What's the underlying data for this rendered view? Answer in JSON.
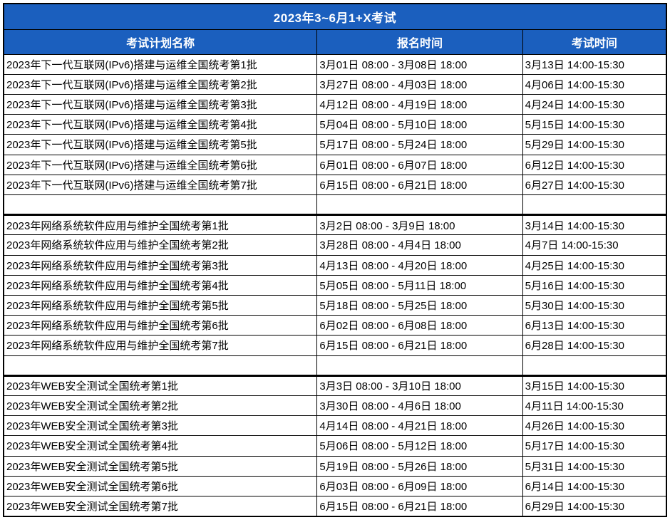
{
  "title": "2023年3~6月1+X考试",
  "columns": [
    "考试计划名称",
    "报名时间",
    "考试时间"
  ],
  "colors": {
    "header_bg": "#1b5fbe",
    "header_text": "#ffffff",
    "border": "#000000",
    "body_bg": "#ffffff",
    "body_text": "#000000"
  },
  "sections": [
    {
      "rows": [
        [
          "2023年下一代互联网(IPv6)搭建与运维全国统考第1批",
          "3月01日 08:00 - 3月08日 18:00",
          "3月13日 14:00-15:30"
        ],
        [
          "2023年下一代互联网(IPv6)搭建与运维全国统考第2批",
          "3月27日 08:00 - 4月03日 18:00",
          "4月06日 14:00-15:30"
        ],
        [
          "2023年下一代互联网(IPv6)搭建与运维全国统考第3批",
          "4月12日 08:00 - 4月19日 18:00",
          "4月24日 14:00-15:30"
        ],
        [
          "2023年下一代互联网(IPv6)搭建与运维全国统考第4批",
          "5月04日 08:00 - 5月10日 18:00",
          "5月15日 14:00-15:30"
        ],
        [
          "2023年下一代互联网(IPv6)搭建与运维全国统考第5批",
          "5月17日 08:00 - 5月24日 18:00",
          "5月29日 14:00-15:30"
        ],
        [
          "2023年下一代互联网(IPv6)搭建与运维全国统考第6批",
          "6月01日 08:00 - 6月07日 18:00",
          "6月12日 14:00-15:30"
        ],
        [
          "2023年下一代互联网(IPv6)搭建与运维全国统考第7批",
          "6月15日 08:00 - 6月21日 18:00",
          "6月27日 14:00-15:30"
        ]
      ]
    },
    {
      "rows": [
        [
          "2023年网络系统软件应用与维护全国统考第1批",
          "3月2日 08:00 - 3月9日 18:00",
          "3月14日 14:00-15:30"
        ],
        [
          "2023年网络系统软件应用与维护全国统考第2批",
          "3月28日 08:00 - 4月4日 18:00",
          "4月7日 14:00-15:30"
        ],
        [
          "2023年网络系统软件应用与维护全国统考第3批",
          "4月13日 08:00 - 4月20日 18:00",
          "4月25日 14:00-15:30"
        ],
        [
          "2023年网络系统软件应用与维护全国统考第4批",
          "5月05日 08:00 - 5月11日 18:00",
          "5月16日 14:00-15:30"
        ],
        [
          "2023年网络系统软件应用与维护全国统考第5批",
          "5月18日 08:00 - 5月25日 18:00",
          "5月30日 14:00-15:30"
        ],
        [
          "2023年网络系统软件应用与维护全国统考第6批",
          "6月02日 08:00 - 6月08日 18:00",
          "6月13日 14:00-15:30"
        ],
        [
          "2023年网络系统软件应用与维护全国统考第7批",
          "6月15日 08:00 - 6月21日 18:00",
          "6月28日 14:00-15:30"
        ]
      ]
    },
    {
      "rows": [
        [
          "2023年WEB安全测试全国统考第1批",
          "3月3日 08:00 - 3月10日 18:00",
          "3月15日 14:00-15:30"
        ],
        [
          "2023年WEB安全测试全国统考第2批",
          "3月30日 08:00 - 4月6日 18:00",
          "4月11日 14:00-15:30"
        ],
        [
          "2023年WEB安全测试全国统考第3批",
          "4月14日 08:00 - 4月21日 18:00",
          "4月26日 14:00-15:30"
        ],
        [
          "2023年WEB安全测试全国统考第4批",
          "5月06日 08:00 - 5月12日 18:00",
          "5月17日 14:00-15:30"
        ],
        [
          "2023年WEB安全测试全国统考第5批",
          "5月19日 08:00 - 5月26日 18:00",
          "5月31日 14:00-15:30"
        ],
        [
          "2023年WEB安全测试全国统考第6批",
          "6月03日 08:00 - 6月09日 18:00",
          "6月14日 14:00-15:30"
        ],
        [
          "2023年WEB安全测试全国统考第7批",
          "6月15日 08:00 - 6月21日 18:00",
          "6月29日 14:00-15:30"
        ]
      ]
    }
  ]
}
